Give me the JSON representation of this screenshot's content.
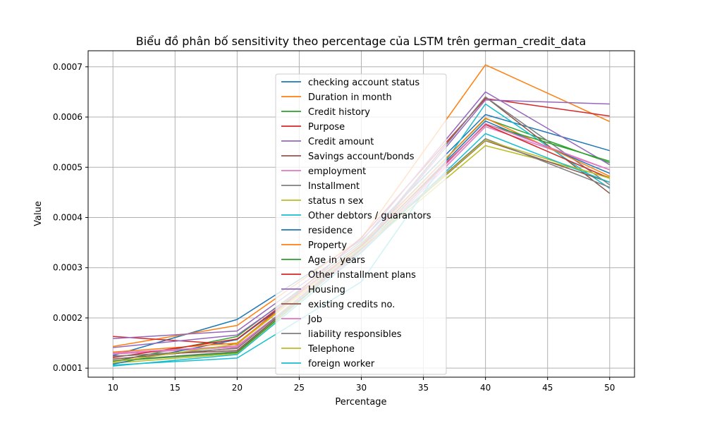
{
  "chart_data": {
    "type": "line",
    "title": "Biểu đồ phân bố sensitivity theo percentage của LSTM trên german_credit_data",
    "xlabel": "Percentage",
    "ylabel": "Value",
    "x": [
      10,
      20,
      30,
      40,
      50
    ],
    "xticks": [
      "10",
      "15",
      "20",
      "25",
      "30",
      "35",
      "40",
      "45",
      "50"
    ],
    "yticks": [
      "0.0001",
      "0.0002",
      "0.0003",
      "0.0004",
      "0.0005",
      "0.0006",
      "0.0007"
    ],
    "xlim": [
      8,
      52
    ],
    "ylim": [
      8.2e-05,
      0.000732
    ],
    "grid": true,
    "legend_position": "upper center",
    "series": [
      {
        "name": "checking account status",
        "color": "#1f77b4",
        "values": [
          0.000125,
          0.000197,
          0.000355,
          0.000605,
          0.000533
        ]
      },
      {
        "name": "Duration in month",
        "color": "#ff7f0e",
        "values": [
          0.000143,
          0.000185,
          0.000358,
          0.000704,
          0.000591
        ]
      },
      {
        "name": "Credit history",
        "color": "#2ca02c",
        "values": [
          0.000113,
          0.000163,
          0.000348,
          0.000597,
          0.000509
        ]
      },
      {
        "name": "Purpose",
        "color": "#d62728",
        "values": [
          0.000163,
          0.000147,
          0.00036,
          0.000637,
          0.000602
        ]
      },
      {
        "name": "Credit amount",
        "color": "#9467bd",
        "values": [
          0.000159,
          0.000174,
          0.000352,
          0.00065,
          0.000505
        ]
      },
      {
        "name": "Savings account/bonds",
        "color": "#8c564b",
        "values": [
          0.000118,
          0.00014,
          0.00034,
          0.00064,
          0.000448
        ]
      },
      {
        "name": "employment",
        "color": "#e377c2",
        "values": [
          0.000128,
          0.000142,
          0.00033,
          0.000581,
          0.000495
        ]
      },
      {
        "name": " Installment",
        "color": "#7f7f7f",
        "values": [
          0.000115,
          0.000133,
          0.000342,
          0.00064,
          0.000465
        ]
      },
      {
        "name": "status n sex",
        "color": "#bcbd22",
        "values": [
          0.00011,
          0.000129,
          0.000336,
          0.000543,
          0.00048
        ]
      },
      {
        "name": " Other debtors / guarantors",
        "color": "#17becf",
        "values": [
          0.000106,
          0.00012,
          0.000272,
          0.000626,
          0.000458
        ]
      },
      {
        "name": "residence",
        "color": "#1f77b4",
        "values": [
          0.000108,
          0.000157,
          0.00034,
          0.000592,
          0.000488
        ]
      },
      {
        "name": "Property",
        "color": "#ff7f0e",
        "values": [
          0.000132,
          0.00015,
          0.000345,
          0.000598,
          0.000482
        ]
      },
      {
        "name": "Age in years",
        "color": "#2ca02c",
        "values": [
          0.000114,
          0.000131,
          0.000336,
          0.000586,
          0.000512
        ]
      },
      {
        "name": "Other installment plans",
        "color": "#d62728",
        "values": [
          0.000121,
          0.000158,
          0.000344,
          0.000585,
          0.000478
        ]
      },
      {
        "name": "Housing",
        "color": "#9467bd",
        "values": [
          0.000141,
          0.000166,
          0.000338,
          0.000634,
          0.000626
        ]
      },
      {
        "name": "existing credits no.",
        "color": "#8c564b",
        "values": [
          0.000124,
          0.000135,
          0.000338,
          0.000553,
          0.00047
        ]
      },
      {
        "name": "Job",
        "color": "#e377c2",
        "values": [
          0.00013,
          0.000144,
          0.000332,
          0.000587,
          0.000495
        ]
      },
      {
        "name": "liability responsibles",
        "color": "#7f7f7f",
        "values": [
          0.000123,
          0.000139,
          0.00034,
          0.000557,
          0.00046
        ]
      },
      {
        "name": "Telephone",
        "color": "#bcbd22",
        "values": [
          0.000112,
          0.000148,
          0.00034,
          0.000554,
          0.000478
        ]
      },
      {
        "name": "foreign worker",
        "color": "#17becf",
        "values": [
          0.000104,
          0.000127,
          0.00033,
          0.000567,
          0.00047
        ]
      }
    ]
  }
}
